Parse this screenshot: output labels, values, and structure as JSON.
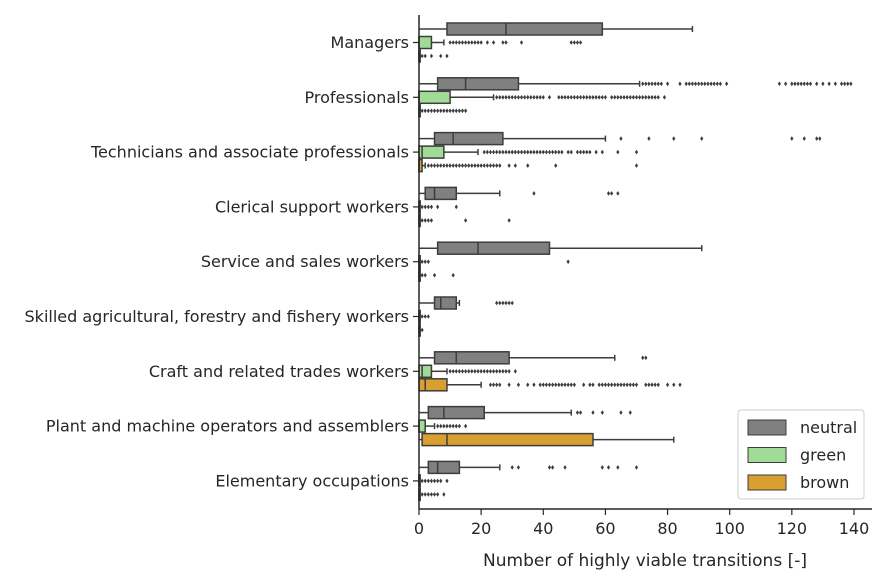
{
  "chart_data": {
    "type": "boxplot",
    "orientation": "horizontal",
    "xlabel": "Number of highly viable transitions [-]",
    "ylabel": "",
    "xlim": [
      0,
      147
    ],
    "xticks": [
      0,
      20,
      40,
      60,
      80,
      100,
      120,
      140
    ],
    "legend": {
      "placement": "lower-right",
      "entries": [
        {
          "name": "neutral",
          "color": "#808080"
        },
        {
          "name": "green",
          "color": "#a0dc96"
        },
        {
          "name": "brown",
          "color": "#d8a030"
        }
      ]
    },
    "categories": [
      "Managers",
      "Professionals",
      "Technicians and associate professionals",
      "Clerical support workers",
      "Service and sales workers",
      "Skilled agricultural, forestry and fishery workers",
      "Craft and related trades workers",
      "Plant and machine operators and assemblers",
      "Elementary occupations"
    ],
    "series": [
      {
        "name": "neutral",
        "color": "#808080",
        "boxes": [
          {
            "min": 0,
            "q1": 9,
            "median": 28,
            "q3": 59,
            "max": 88,
            "outliers": []
          },
          {
            "min": 0,
            "q1": 6,
            "median": 15,
            "q3": 32,
            "max": 71,
            "outliers": [
              72,
              73,
              74,
              75,
              76,
              77,
              78,
              80,
              84,
              86,
              87,
              88,
              89,
              90,
              91,
              92,
              93,
              94,
              95,
              96,
              97,
              99,
              116,
              118,
              120,
              121,
              122,
              123,
              124,
              125,
              126,
              128,
              130,
              132,
              134,
              136,
              137,
              138,
              139
            ]
          },
          {
            "min": 0,
            "q1": 5,
            "median": 11,
            "q3": 27,
            "max": 60,
            "outliers": [
              65,
              74,
              82,
              91,
              120,
              124,
              128,
              129
            ]
          },
          {
            "min": 0,
            "q1": 2,
            "median": 5,
            "q3": 12,
            "max": 26,
            "outliers": [
              37,
              61,
              62,
              64
            ]
          },
          {
            "min": 0,
            "q1": 6,
            "median": 19,
            "q3": 42,
            "max": 91,
            "outliers": []
          },
          {
            "min": 0,
            "q1": 5,
            "median": 7,
            "q3": 12,
            "max": 13,
            "outliers": [
              25,
              26,
              27,
              28,
              29,
              30
            ]
          },
          {
            "min": 0,
            "q1": 5,
            "median": 12,
            "q3": 29,
            "max": 63,
            "outliers": [
              72,
              73
            ]
          },
          {
            "min": 0,
            "q1": 3,
            "median": 8,
            "q3": 21,
            "max": 49,
            "outliers": [
              51,
              52,
              56,
              59,
              65,
              68
            ]
          },
          {
            "min": 0,
            "q1": 3,
            "median": 6,
            "q3": 13,
            "max": 26,
            "outliers": [
              30,
              32,
              42,
              43,
              47,
              59,
              61,
              64,
              70
            ]
          }
        ]
      },
      {
        "name": "green",
        "color": "#a0dc96",
        "boxes": [
          {
            "min": 0,
            "q1": 0,
            "median": 0,
            "q3": 4,
            "max": 8,
            "outliers": [
              10,
              11,
              12,
              13,
              14,
              15,
              16,
              17,
              18,
              19,
              20,
              22,
              24,
              27,
              28,
              33,
              49,
              50,
              51,
              52
            ]
          },
          {
            "min": 0,
            "q1": 0,
            "median": 0,
            "q3": 10,
            "max": 24,
            "outliers": [
              25,
              26,
              27,
              28,
              29,
              30,
              31,
              32,
              33,
              34,
              35,
              36,
              37,
              38,
              39,
              40,
              42,
              45,
              46,
              47,
              48,
              49,
              50,
              51,
              52,
              53,
              54,
              55,
              56,
              57,
              58,
              59,
              60,
              62,
              63,
              64,
              65,
              66,
              67,
              68,
              69,
              70,
              71,
              72,
              73,
              74,
              75,
              76,
              77,
              79
            ]
          },
          {
            "min": 0,
            "q1": 0,
            "median": 1,
            "q3": 8,
            "max": 19,
            "outliers": [
              21,
              22,
              23,
              24,
              25,
              26,
              27,
              28,
              29,
              30,
              31,
              32,
              33,
              34,
              35,
              36,
              37,
              38,
              39,
              40,
              41,
              42,
              43,
              44,
              45,
              46,
              48,
              49,
              51,
              52,
              53,
              54,
              55,
              57,
              59,
              64,
              70
            ]
          },
          {
            "min": 0,
            "q1": 0,
            "median": 0,
            "q3": 0,
            "max": 0,
            "outliers": [
              1,
              2,
              3,
              4,
              6,
              12
            ]
          },
          {
            "min": 0,
            "q1": 0,
            "median": 0,
            "q3": 0,
            "max": 0,
            "outliers": [
              1,
              2,
              3,
              48
            ]
          },
          {
            "min": 0,
            "q1": 0,
            "median": 0,
            "q3": 0,
            "max": 0,
            "outliers": [
              1,
              2,
              3
            ]
          },
          {
            "min": 0,
            "q1": 0,
            "median": 1,
            "q3": 4,
            "max": 9,
            "outliers": [
              10,
              11,
              12,
              13,
              14,
              15,
              16,
              17,
              18,
              19,
              20,
              21,
              22,
              23,
              24,
              25,
              26,
              27,
              28,
              29,
              31
            ]
          },
          {
            "min": 0,
            "q1": 0,
            "median": 0,
            "q3": 2,
            "max": 5,
            "outliers": [
              6,
              7,
              8,
              9,
              10,
              11,
              12,
              13,
              15
            ]
          },
          {
            "min": 0,
            "q1": 0,
            "median": 0,
            "q3": 0,
            "max": 0,
            "outliers": [
              1,
              2,
              3,
              4,
              5,
              6,
              7,
              9
            ]
          }
        ]
      },
      {
        "name": "brown",
        "color": "#d8a030",
        "boxes": [
          {
            "min": 0,
            "q1": 0,
            "median": 0,
            "q3": 0,
            "max": 0,
            "outliers": [
              1,
              2,
              4,
              7,
              9
            ]
          },
          {
            "min": 0,
            "q1": 0,
            "median": 0,
            "q3": 0,
            "max": 0,
            "outliers": [
              1,
              2,
              3,
              4,
              5,
              6,
              7,
              8,
              9,
              10,
              11,
              12,
              13,
              14,
              15
            ]
          },
          {
            "min": 0,
            "q1": 0,
            "median": 0,
            "q3": 1,
            "max": 2,
            "outliers": [
              3,
              4,
              5,
              6,
              7,
              8,
              9,
              10,
              11,
              12,
              13,
              14,
              15,
              16,
              17,
              18,
              19,
              20,
              21,
              22,
              23,
              24,
              25,
              26,
              29,
              31,
              35,
              44,
              70
            ]
          },
          {
            "min": 0,
            "q1": 0,
            "median": 0,
            "q3": 0,
            "max": 0,
            "outliers": [
              1,
              2,
              3,
              4,
              15,
              29
            ]
          },
          {
            "min": 0,
            "q1": 0,
            "median": 0,
            "q3": 0,
            "max": 0,
            "outliers": [
              1,
              2,
              5,
              11
            ]
          },
          {
            "min": 0,
            "q1": 0,
            "median": 0,
            "q3": 0,
            "max": 0,
            "outliers": [
              1
            ]
          },
          {
            "min": 0,
            "q1": 0,
            "median": 2,
            "q3": 9,
            "max": 20,
            "outliers": [
              23,
              24,
              25,
              26,
              29,
              32,
              35,
              37,
              39,
              40,
              41,
              42,
              43,
              44,
              45,
              46,
              47,
              48,
              49,
              50,
              53,
              55,
              56,
              58,
              59,
              60,
              61,
              62,
              63,
              64,
              65,
              66,
              67,
              68,
              69,
              70,
              73,
              74,
              75,
              76,
              77,
              80,
              82,
              84
            ]
          },
          {
            "min": 0,
            "q1": 1,
            "median": 9,
            "q3": 56,
            "max": 82,
            "outliers": []
          },
          {
            "min": 0,
            "q1": 0,
            "median": 0,
            "q3": 0,
            "max": 0,
            "outliers": [
              1,
              2,
              3,
              4,
              5,
              6,
              8
            ]
          }
        ]
      }
    ]
  }
}
